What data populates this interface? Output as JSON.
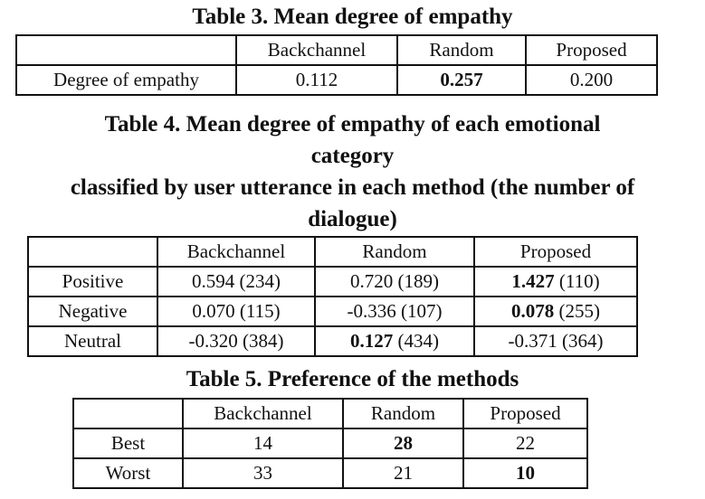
{
  "table3": {
    "caption": "Table 3. Mean degree of empathy",
    "headers": [
      "",
      "Backchannel",
      "Random",
      "Proposed"
    ],
    "row": {
      "label": "Degree of empathy",
      "backchannel": "0.112",
      "random": "0.257",
      "proposed": "0.200"
    }
  },
  "table4": {
    "caption_line1": "Table 4.  Mean degree of empathy of each emotional",
    "caption_line2": "category",
    "caption_line3": "classified by user utterance in each method (the number of",
    "caption_line4": "dialogue)",
    "headers": [
      "",
      "Backchannel",
      "Random",
      "Proposed"
    ],
    "rows": [
      {
        "label": "Positive",
        "backchannel": {
          "value": "0.594",
          "count": " (234)"
        },
        "random": {
          "value": "0.720",
          "count": " (189)"
        },
        "proposed": {
          "value": "1.427",
          "count": " (110)"
        }
      },
      {
        "label": "Negative",
        "backchannel": {
          "value": "0.070",
          "count": " (115)"
        },
        "random": {
          "value": "-0.336",
          "count": " (107)"
        },
        "proposed": {
          "value": "0.078",
          "count": " (255)"
        }
      },
      {
        "label": "Neutral",
        "backchannel": {
          "value": "-0.320",
          "count": " (384)"
        },
        "random": {
          "value": "0.127",
          "count": " (434)"
        },
        "proposed": {
          "value": "-0.371",
          "count": " (364)"
        }
      }
    ]
  },
  "table5": {
    "caption": "Table 5.  Preference of the methods",
    "headers": [
      "",
      "Backchannel",
      "Random",
      "Proposed"
    ],
    "rows": [
      {
        "label": "Best",
        "backchannel": "14",
        "random": "28",
        "proposed": "22"
      },
      {
        "label": "Worst",
        "backchannel": "33",
        "random": "21",
        "proposed": "10"
      }
    ]
  }
}
